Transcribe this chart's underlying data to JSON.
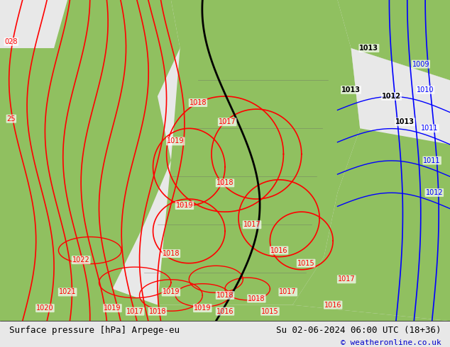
{
  "title_left": "Surface pressure [hPa] Arpege-eu",
  "title_right": "Su 02-06-2024 06:00 UTC (18+36)",
  "copyright": "© weatheronline.co.uk",
  "bg_color": "#e8e8e8",
  "green_color": "#90c060",
  "red_contour_color": "#ff0000",
  "blue_contour_color": "#0000ff",
  "black_contour_color": "#000000",
  "gray_contour_color": "#808080",
  "label_color_left": "#000000",
  "label_color_right": "#000000",
  "copyright_color": "#0000cc",
  "bottom_bar_color": "#ffffff",
  "figsize": [
    6.34,
    4.9
  ],
  "dpi": 100
}
